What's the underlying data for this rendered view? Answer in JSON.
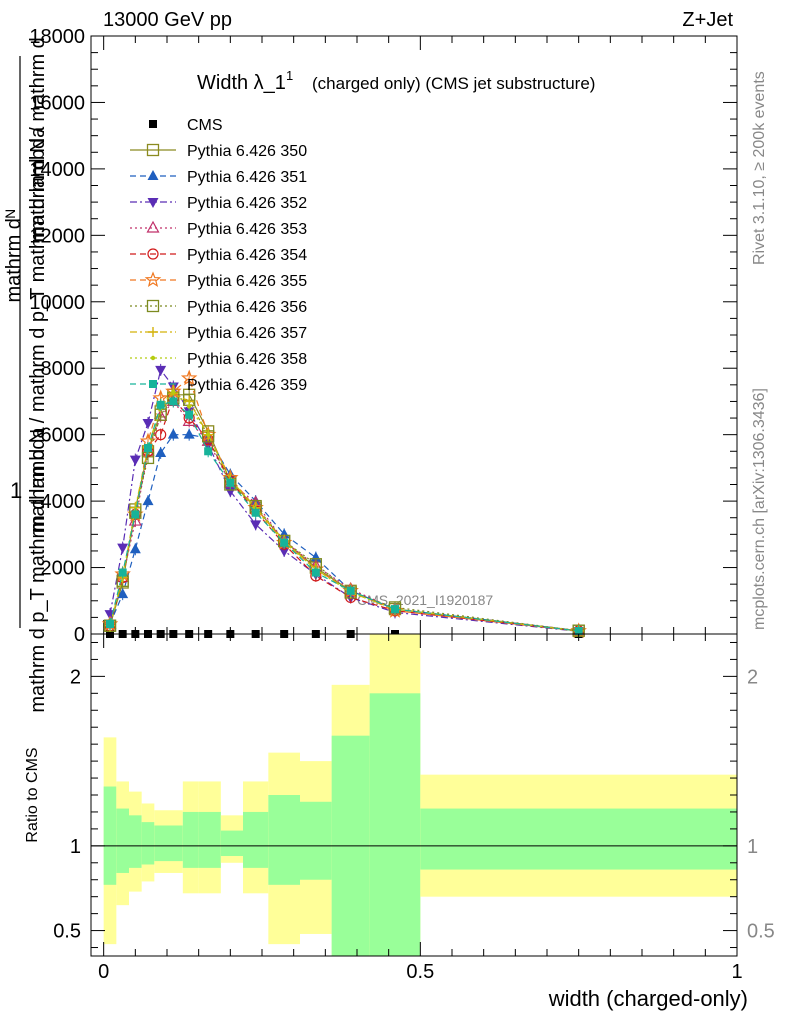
{
  "header": {
    "left": "13000 GeV pp",
    "right": "Z+Jet"
  },
  "side_labels": {
    "rivet": "Rivet 3.1.10, ≥ 200k events",
    "mcplots": "mcplots.cern.ch [arXiv:1306.3436]"
  },
  "watermark": "CMS_2021_I1920187",
  "chart_data": [
    {
      "type": "line",
      "title": "Width λ_1",
      "title_sup": "1",
      "subtitle": "(charged only) (CMS jet substructure)",
      "ylabel_top": "mathrm dᴺ",
      "ylabel_numer": "1",
      "ylabel_lines": [
        "mathrm d N / mathrm d p_T mathrm d lambda",
        "mathrm d p_T mathrm d lambda",
        "mathrm d N / mathrm d"
      ],
      "xlim": [
        -0.02,
        1.0
      ],
      "ylim": [
        0,
        18000
      ],
      "yticks": [
        0,
        2000,
        4000,
        6000,
        8000,
        10000,
        12000,
        14000,
        16000,
        18000
      ],
      "legend_position": "top-left",
      "x": [
        0.01,
        0.03,
        0.05,
        0.07,
        0.09,
        0.11,
        0.135,
        0.165,
        0.2,
        0.24,
        0.285,
        0.335,
        0.39,
        0.46,
        0.75
      ],
      "series": [
        {
          "name": "CMS",
          "color": "#000000",
          "marker": "square-filled",
          "dash": "none",
          "values": [
            0,
            0,
            0,
            0,
            0,
            0,
            0,
            0,
            0,
            0,
            0,
            0,
            0,
            0,
            0
          ]
        },
        {
          "name": "Pythia 6.426 350",
          "color": "#8b8b20",
          "marker": "square-open",
          "dash": "solid",
          "values": [
            250,
            1550,
            3750,
            5500,
            6700,
            7200,
            7200,
            6100,
            4600,
            3800,
            2800,
            2000,
            1300,
            750,
            100
          ]
        },
        {
          "name": "Pythia 6.426 351",
          "color": "#1f5fbf",
          "marker": "triangle-up-filled",
          "dash": "dashed",
          "values": [
            300,
            1200,
            2550,
            4000,
            5450,
            6000,
            6000,
            5900,
            4800,
            4000,
            3000,
            2300,
            1300,
            750,
            100
          ]
        },
        {
          "name": "Pythia 6.426 352",
          "color": "#5a2db5",
          "marker": "triangle-down-filled",
          "dash": "dashdot",
          "values": [
            600,
            2600,
            5250,
            6350,
            7950,
            7450,
            6700,
            5700,
            4300,
            3300,
            2500,
            1800,
            1100,
            650,
            80
          ]
        },
        {
          "name": "Pythia 6.426 353",
          "color": "#c0306a",
          "marker": "triangle-up-open",
          "dash": "dotted",
          "values": [
            300,
            1700,
            3400,
            5500,
            6550,
            7000,
            6400,
            5800,
            4550,
            3950,
            2800,
            2050,
            1350,
            750,
            100
          ]
        },
        {
          "name": "Pythia 6.426 354",
          "color": "#d11a1a",
          "marker": "circle-open",
          "dash": "dashed",
          "values": [
            250,
            1700,
            3600,
            5500,
            6000,
            7100,
            6500,
            5850,
            4600,
            3700,
            2700,
            1750,
            1100,
            700,
            90
          ]
        },
        {
          "name": "Pythia 6.426 355",
          "color": "#f07820",
          "marker": "star-open",
          "dash": "dashed",
          "values": [
            300,
            1800,
            3600,
            5800,
            7100,
            7300,
            7700,
            6000,
            4700,
            3800,
            2750,
            1950,
            1300,
            700,
            90
          ]
        },
        {
          "name": "Pythia 6.426 356",
          "color": "#7c8a20",
          "marker": "square-open",
          "dash": "dotted",
          "values": [
            250,
            1600,
            3650,
            5300,
            6600,
            7100,
            7050,
            5950,
            4500,
            3850,
            2800,
            2100,
            1250,
            800,
            100
          ]
        },
        {
          "name": "Pythia 6.426 357",
          "color": "#d4b20a",
          "marker": "cross",
          "dash": "dashdot",
          "values": [
            250,
            1700,
            3800,
            5600,
            6900,
            7250,
            7000,
            6000,
            4650,
            3800,
            2800,
            1950,
            1250,
            750,
            90
          ]
        },
        {
          "name": "Pythia 6.426 358",
          "color": "#b5cc10",
          "marker": "dot",
          "dash": "dotted",
          "values": [
            250,
            1750,
            3700,
            5600,
            6800,
            7300,
            6850,
            6000,
            4650,
            3750,
            2750,
            1950,
            1250,
            750,
            90
          ]
        },
        {
          "name": "Pythia 6.426 359",
          "color": "#17b39a",
          "marker": "square-filled",
          "dash": "dashed",
          "values": [
            300,
            1850,
            3600,
            5600,
            6900,
            7000,
            6600,
            5500,
            4550,
            3650,
            2750,
            1850,
            1300,
            750,
            90
          ]
        }
      ]
    },
    {
      "type": "area",
      "ylabel": "Ratio to CMS",
      "xlabel": "width (charged-only)",
      "xlim": [
        -0.02,
        1.0
      ],
      "ylim": [
        0.35,
        2.25
      ],
      "yticks": [
        0.5,
        1,
        2
      ],
      "xticks": [
        0,
        0.5,
        1
      ],
      "xtick_labels": [
        "0",
        "0.5",
        "1"
      ],
      "reference_line": 1,
      "bins": [
        {
          "lo": 0.0,
          "hi": 0.02,
          "green": [
            0.77,
            1.35
          ],
          "yellow": [
            0.42,
            1.64
          ]
        },
        {
          "lo": 0.02,
          "hi": 0.04,
          "green": [
            0.84,
            1.22
          ],
          "yellow": [
            0.65,
            1.38
          ]
        },
        {
          "lo": 0.04,
          "hi": 0.06,
          "green": [
            0.87,
            1.18
          ],
          "yellow": [
            0.73,
            1.32
          ]
        },
        {
          "lo": 0.06,
          "hi": 0.08,
          "green": [
            0.89,
            1.14
          ],
          "yellow": [
            0.79,
            1.25
          ]
        },
        {
          "lo": 0.08,
          "hi": 0.1,
          "green": [
            0.91,
            1.12
          ],
          "yellow": [
            0.84,
            1.21
          ]
        },
        {
          "lo": 0.1,
          "hi": 0.125,
          "green": [
            0.91,
            1.12
          ],
          "yellow": [
            0.84,
            1.21
          ]
        },
        {
          "lo": 0.125,
          "hi": 0.15,
          "green": [
            0.87,
            1.2
          ],
          "yellow": [
            0.72,
            1.38
          ]
        },
        {
          "lo": 0.15,
          "hi": 0.185,
          "green": [
            0.87,
            1.2
          ],
          "yellow": [
            0.72,
            1.38
          ]
        },
        {
          "lo": 0.185,
          "hi": 0.22,
          "green": [
            0.94,
            1.09
          ],
          "yellow": [
            0.9,
            1.18
          ]
        },
        {
          "lo": 0.22,
          "hi": 0.26,
          "green": [
            0.87,
            1.2
          ],
          "yellow": [
            0.72,
            1.38
          ]
        },
        {
          "lo": 0.26,
          "hi": 0.31,
          "green": [
            0.77,
            1.3
          ],
          "yellow": [
            0.42,
            1.55
          ]
        },
        {
          "lo": 0.31,
          "hi": 0.36,
          "green": [
            0.8,
            1.26
          ],
          "yellow": [
            0.48,
            1.5
          ]
        },
        {
          "lo": 0.36,
          "hi": 0.42,
          "green": [
            0.35,
            1.65
          ],
          "yellow": [
            0.3,
            1.95
          ]
        },
        {
          "lo": 0.42,
          "hi": 0.5,
          "green": [
            0.3,
            1.9
          ],
          "yellow": [
            0.3,
            2.4
          ]
        },
        {
          "lo": 0.5,
          "hi": 1.0,
          "green": [
            0.86,
            1.22
          ],
          "yellow": [
            0.7,
            1.42
          ]
        }
      ]
    }
  ]
}
